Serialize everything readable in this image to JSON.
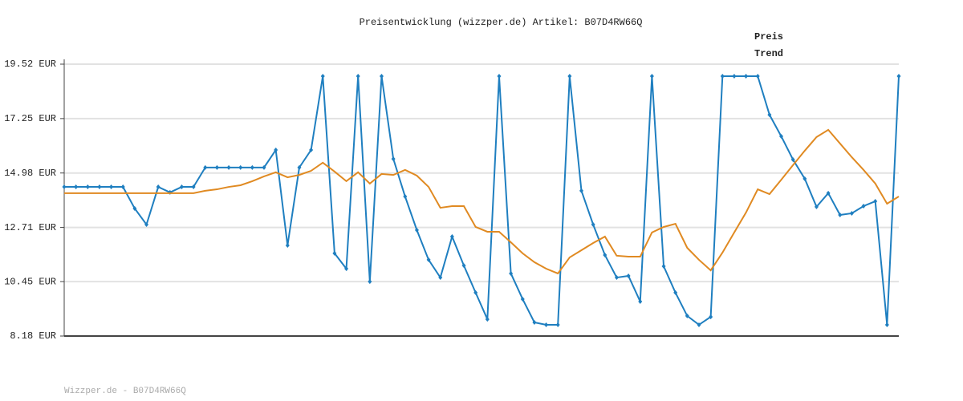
{
  "chart_data": {
    "type": "line",
    "title": "Preisentwicklung (wizzper.de) Artikel: B07D4RW66Q",
    "footer": "Wizzper.de - B07D4RW66Q",
    "ylim": [
      8.18,
      19.52
    ],
    "yticks": [
      {
        "value": 8.18,
        "label": "8.18 EUR"
      },
      {
        "value": 10.45,
        "label": "10.45 EUR"
      },
      {
        "value": 12.71,
        "label": "12.71 EUR"
      },
      {
        "value": 14.98,
        "label": "14.98 EUR"
      },
      {
        "value": 17.25,
        "label": "17.25 EUR"
      },
      {
        "value": 19.52,
        "label": "19.52 EUR"
      }
    ],
    "grid": true,
    "legend": "top-right",
    "series": [
      {
        "name": "Preis",
        "color": "#1f7fc0",
        "markers": true,
        "values": [
          14.4,
          14.4,
          14.4,
          14.4,
          14.4,
          14.4,
          13.5,
          12.83,
          14.4,
          14.17,
          14.4,
          14.4,
          15.21,
          15.21,
          15.21,
          15.21,
          15.21,
          15.21,
          15.94,
          11.96,
          15.21,
          15.94,
          19.02,
          11.63,
          10.99,
          19.02,
          10.45,
          19.02,
          15.57,
          14.0,
          12.6,
          11.36,
          10.62,
          12.33,
          11.12,
          9.99,
          8.88,
          19.02,
          10.79,
          9.72,
          8.75,
          8.65,
          8.65,
          19.02,
          14.24,
          12.83,
          11.56,
          10.62,
          10.69,
          9.62,
          19.02,
          11.09,
          9.99,
          9.02,
          8.65,
          8.98,
          19.02,
          19.02,
          19.02,
          19.02,
          17.41,
          16.51,
          15.54,
          14.74,
          13.57,
          14.14,
          13.23,
          13.3,
          13.6,
          13.8,
          8.65,
          19.02
        ]
      },
      {
        "name": "Trend",
        "color": "#e08a22",
        "markers": false,
        "values": [
          14.14,
          14.14,
          14.14,
          14.14,
          14.14,
          14.14,
          14.14,
          14.14,
          14.14,
          14.14,
          14.14,
          14.14,
          14.24,
          14.3,
          14.4,
          14.47,
          14.64,
          14.84,
          15.01,
          14.8,
          14.9,
          15.07,
          15.41,
          15.04,
          14.64,
          15.01,
          14.54,
          14.94,
          14.9,
          15.11,
          14.87,
          14.4,
          13.53,
          13.6,
          13.6,
          12.73,
          12.53,
          12.53,
          12.09,
          11.63,
          11.26,
          10.99,
          10.79,
          11.46,
          11.76,
          12.06,
          12.33,
          11.53,
          11.49,
          11.49,
          12.5,
          12.73,
          12.86,
          11.86,
          11.36,
          10.92,
          11.66,
          12.5,
          13.33,
          14.3,
          14.1,
          14.7,
          15.31,
          15.91,
          16.48,
          16.78,
          16.21,
          15.64,
          15.11,
          14.54,
          13.7,
          14.0
        ]
      }
    ]
  }
}
